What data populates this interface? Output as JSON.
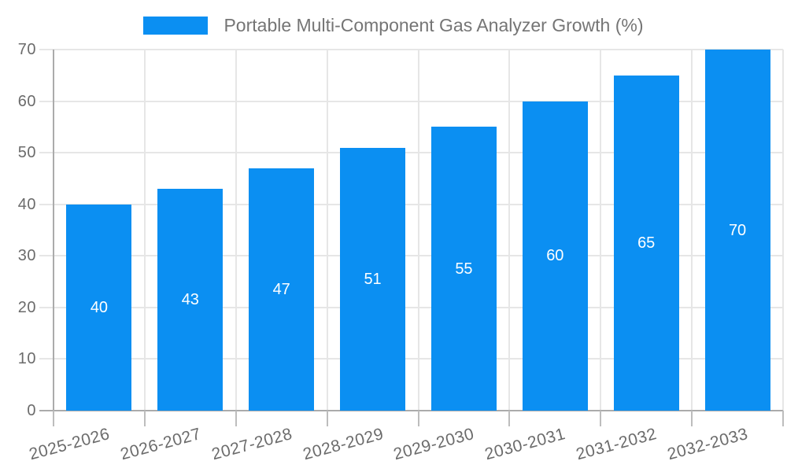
{
  "chart_data": {
    "type": "bar",
    "title": "Portable Multi-Component Gas Analyzer Growth (%)",
    "legend": {
      "label": "Portable Multi-Component Gas Analyzer Growth (%)",
      "position": "top"
    },
    "categories": [
      "2025-2026",
      "2026-2027",
      "2027-2028",
      "2028-2029",
      "2029-2030",
      "2030-2031",
      "2031-2032",
      "2032-2033"
    ],
    "values": [
      40,
      43,
      47,
      51,
      55,
      60,
      65,
      70
    ],
    "bar_value_labels": [
      "40",
      "43",
      "47",
      "51",
      "55",
      "60",
      "65",
      "70"
    ],
    "xlabel": "",
    "ylabel": "",
    "ylim": [
      0,
      70
    ],
    "yticks": [
      0,
      10,
      20,
      30,
      40,
      50,
      60,
      70
    ],
    "grid": true,
    "colors": {
      "bar": "#0b8ff2",
      "bar_label_text": "#ffffff",
      "legend_text": "#757575",
      "axis_tick_text": "#6b6b6b",
      "gridline": "#e6e6e6",
      "axis_line": "#ababab",
      "x_tick_mark": "#bdbdbd",
      "background": "#ffffff"
    }
  }
}
